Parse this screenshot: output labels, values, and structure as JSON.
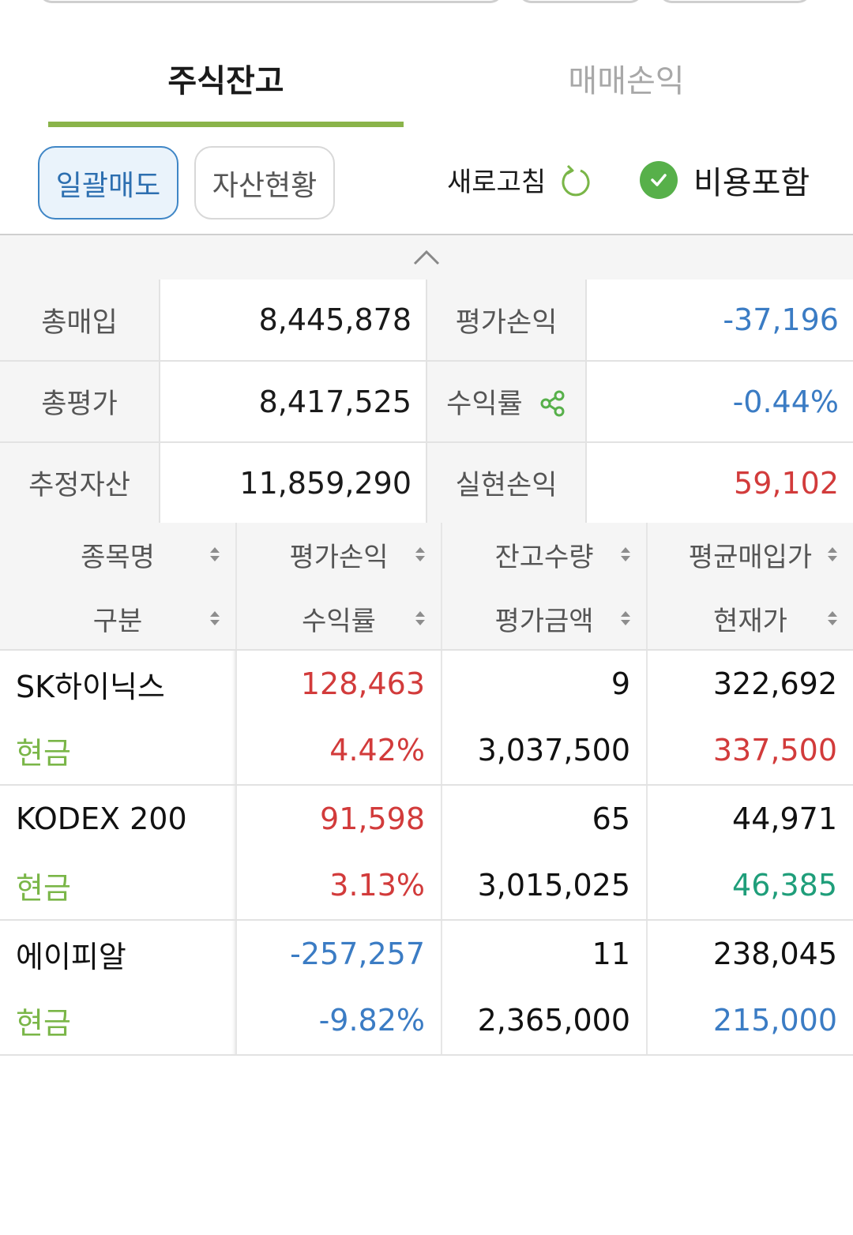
{
  "tabs": [
    {
      "label": "주식잔고",
      "active": true
    },
    {
      "label": "매매손익",
      "active": false
    }
  ],
  "toolbar": {
    "bulk_sell": "일괄매도",
    "asset_status": "자산현황",
    "refresh": "새로고침",
    "include_fees": "비용포함"
  },
  "summary": {
    "total_buy_label": "총매입",
    "total_buy": "8,445,878",
    "eval_pl_label": "평가손익",
    "eval_pl": "-37,196",
    "total_eval_label": "총평가",
    "total_eval": "8,417,525",
    "return_label": "수익률",
    "return": "-0.44%",
    "est_assets_label": "추정자산",
    "est_assets": "11,859,290",
    "realized_label": "실현손익",
    "realized": "59,102"
  },
  "columns": {
    "name": "종목명",
    "type": "구분",
    "eval_pl": "평가손익",
    "return": "수익률",
    "qty": "잔고수량",
    "eval_amt": "평가금액",
    "avg_price": "평균매입가",
    "cur_price": "현재가"
  },
  "holdings": [
    {
      "name": "SK하이닉스",
      "type": "현금",
      "eval_pl": "128,463",
      "return": "4.42%",
      "qty": "9",
      "eval_amt": "3,037,500",
      "avg_price": "322,692",
      "cur_price": "337,500"
    },
    {
      "name": "KODEX 200",
      "type": "현금",
      "eval_pl": "91,598",
      "return": "3.13%",
      "qty": "65",
      "eval_amt": "3,015,025",
      "avg_price": "44,971",
      "cur_price": "46,385"
    },
    {
      "name": "에이피알",
      "type": "현금",
      "eval_pl": "-257,257",
      "return": "-9.82%",
      "qty": "11",
      "eval_amt": "2,365,000",
      "avg_price": "238,045",
      "cur_price": "215,000"
    }
  ],
  "colors": {
    "accent": "#8ab44a",
    "positive": "#d23b3b",
    "negative": "#3b7cc4",
    "teal": "#1f9e7a",
    "cash": "#7ab648"
  },
  "icons": {
    "refresh": "refresh-icon",
    "check": "check-circle-icon",
    "share": "share-icon",
    "collapse": "chevron-up-icon",
    "sort": "sort-icon"
  }
}
